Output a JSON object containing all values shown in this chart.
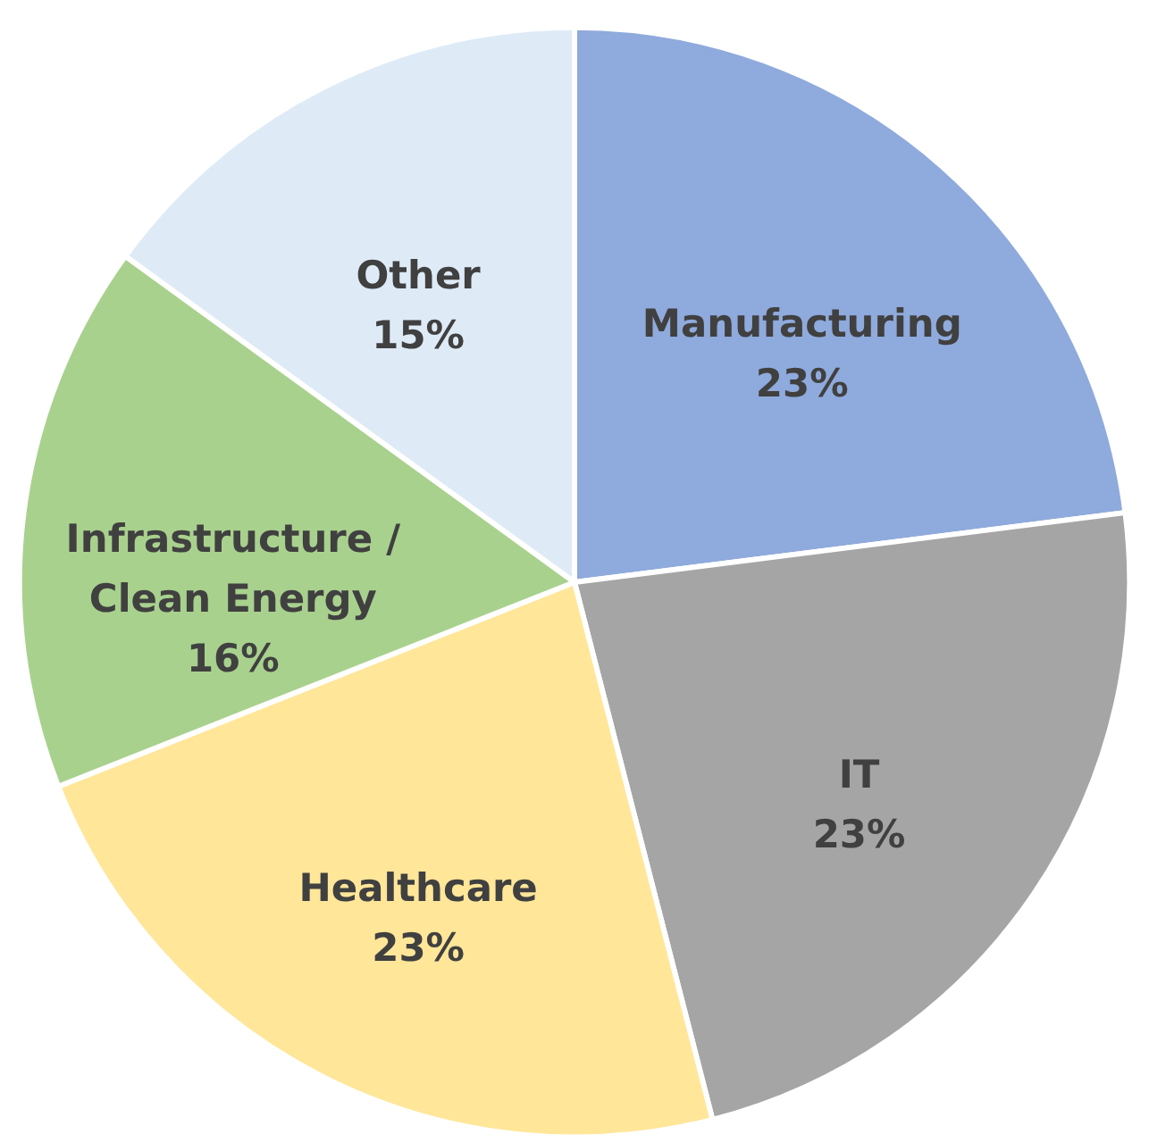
{
  "chart_data": {
    "type": "pie",
    "categories": [
      "Manufacturing",
      "IT",
      "Healthcare",
      "Infrastructure / Clean Energy",
      "Other"
    ],
    "values": [
      23,
      23,
      23,
      16,
      15
    ],
    "value_labels": [
      "23%",
      "23%",
      "23%",
      "16%",
      "15%"
    ],
    "colors": [
      "#8faadc",
      "#a5a5a5",
      "#ffe699",
      "#a9d18e",
      "#deebf7"
    ],
    "legend": false
  }
}
